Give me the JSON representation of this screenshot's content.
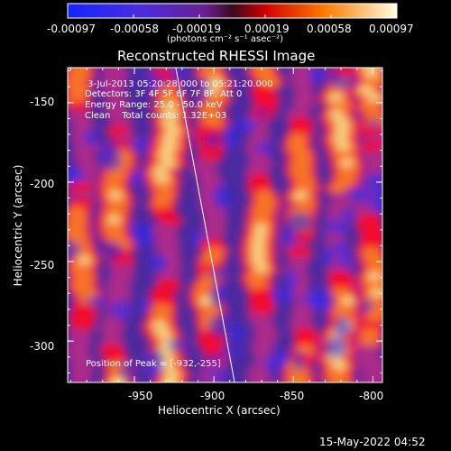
{
  "colorbar": {
    "ticks": [
      "-0.00097",
      "-0.00058",
      "-0.00019",
      "0.00019",
      "0.00058",
      "0.00097"
    ],
    "unit": "(photons cm⁻² s⁻¹ asec⁻²)"
  },
  "header": {
    "title": "Reconstructed RHESSI Image",
    "info_lines": [
      "3-Jul-2013 05:20:28.000 to 05:21:20.000",
      "Detectors: 3F 4F 5F 6F 7F 8F, Att 0",
      "Energy Range: 25.0 - 50.0 keV",
      "Clean    Total counts: 1.32E+03"
    ]
  },
  "annotation": {
    "position_text": "Position of Peak = [-932,-255]"
  },
  "footer": {
    "timestamp": "15-May-2022 04:52"
  },
  "chart_data": {
    "type": "heatmap",
    "title": "Reconstructed RHESSI Image",
    "xlabel": "Heliocentric X (arcsec)",
    "ylabel": "Heliocentric Y (arcsec)",
    "xlim": [
      -992,
      -794
    ],
    "ylim": [
      -326,
      -128
    ],
    "x_ticks": [
      -950,
      -900,
      -850,
      -800
    ],
    "y_ticks": [
      -300,
      -250,
      -200,
      -150
    ],
    "x_tick_labels": [
      "-950",
      "-900",
      "-850",
      "-800"
    ],
    "y_tick_labels": [
      "-300",
      "-250",
      "-200",
      "-150"
    ],
    "colorbar_range": [
      -0.00097,
      0.00097
    ],
    "colormap": [
      "#1d2cff",
      "#7a2ccf",
      "#b02a8a",
      "#ff0000",
      "#ff8c00",
      "#ffffa0"
    ],
    "peak": [
      -932,
      -255
    ],
    "limb_line": [
      [
        -887,
        -326
      ],
      [
        -924,
        -128
      ]
    ],
    "bands_x_centers": [
      -983,
      -960,
      -930,
      -902,
      -870,
      -845,
      -820,
      -800
    ],
    "bands_intensity": [
      0.7,
      0.78,
      0.96,
      0.62,
      0.82,
      0.68,
      0.86,
      0.74
    ]
  }
}
